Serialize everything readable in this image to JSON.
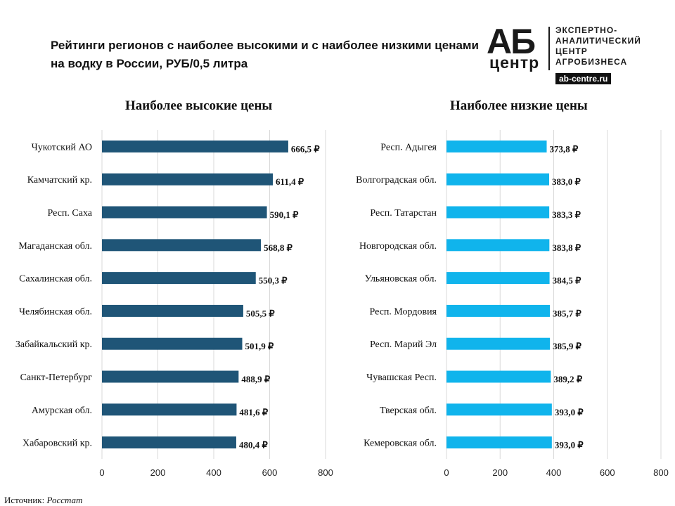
{
  "title": "Рейтинги регионов с наиболее высокими и с наиболее низкими ценами на водку в России, РУБ/0,5 литра",
  "logo": {
    "letters": "АБ",
    "word": "центр",
    "lines": [
      "ЭКСПЕРТНО-",
      "АНАЛИТИЧЕСКИЙ",
      "ЦЕНТР",
      "АГРОБИЗНЕСА"
    ],
    "url": "ab-centre.ru"
  },
  "source": {
    "label": "Источник:",
    "name": "Росстат"
  },
  "colors": {
    "high_bar": "#1f5577",
    "low_bar": "#10b4ec",
    "grid": "#d9d9d9"
  },
  "chart_data": [
    {
      "type": "bar",
      "orientation": "horizontal",
      "title": "Наиболее высокие цены",
      "categories": [
        "Чукотский АО",
        "Камчатский кр.",
        "Респ. Саха",
        "Магаданская обл.",
        "Сахалинская обл.",
        "Челябинская обл.",
        "Забайкальский кр.",
        "Санкт-Петербург",
        "Амурская обл.",
        "Хабаровский кр."
      ],
      "values": [
        666.5,
        611.4,
        590.1,
        568.8,
        550.3,
        505.5,
        501.9,
        488.9,
        481.6,
        480.4
      ],
      "value_labels": [
        "666,5 ₽",
        "611,4 ₽",
        "590,1 ₽",
        "568,8 ₽",
        "550,3 ₽",
        "505,5 ₽",
        "501,9 ₽",
        "488,9 ₽",
        "481,6 ₽",
        "480,4 ₽"
      ],
      "xlim": [
        0,
        800
      ],
      "xticks": [
        "0",
        "200",
        "400",
        "600",
        "800"
      ],
      "grid": true
    },
    {
      "type": "bar",
      "orientation": "horizontal",
      "title": "Наиболее низкие цены",
      "categories": [
        "Респ. Адыгея",
        "Волгоградская обл.",
        "Респ. Татарстан",
        "Новгородская обл.",
        "Ульяновская обл.",
        "Респ. Мордовия",
        "Респ. Марий Эл",
        "Чувашская Респ.",
        "Тверская обл.",
        "Кемеровская обл."
      ],
      "values": [
        373.8,
        383.0,
        383.3,
        383.8,
        384.5,
        385.7,
        385.9,
        389.2,
        393.0,
        393.0
      ],
      "value_labels": [
        "373,8 ₽",
        "383,0 ₽",
        "383,3 ₽",
        "383,8 ₽",
        "384,5 ₽",
        "385,7 ₽",
        "385,9 ₽",
        "389,2 ₽",
        "393,0 ₽",
        "393,0 ₽"
      ],
      "xlim": [
        0,
        800
      ],
      "xticks": [
        "0",
        "200",
        "400",
        "600",
        "800"
      ],
      "grid": true
    }
  ]
}
